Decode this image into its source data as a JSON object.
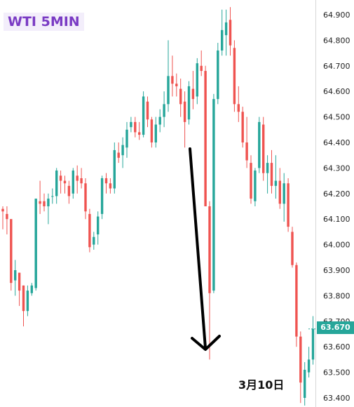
{
  "title": "WTI 5MIN",
  "date_label": "3月10日",
  "current_price": "63.670",
  "colors": {
    "up": "#26a69a",
    "down": "#ef5350",
    "title": "#7a3bc4",
    "axis_line": "#d7d7d7",
    "arrow": "#000000"
  },
  "chart_data": {
    "type": "candlestick",
    "title": "WTI 5MIN",
    "ylim": [
      63.34,
      64.95
    ],
    "y_ticks": [
      "64.900",
      "64.800",
      "64.700",
      "64.600",
      "64.500",
      "64.400",
      "64.300",
      "64.200",
      "64.100",
      "64.000",
      "63.900",
      "63.800",
      "63.700",
      "63.600",
      "63.500",
      "63.400"
    ],
    "current_price": 63.67,
    "annotation": "downward arrow",
    "candles": [
      [
        64.14,
        64.15,
        64.06,
        64.13
      ],
      [
        64.12,
        64.15,
        64.04,
        64.1
      ],
      [
        64.1,
        64.1,
        63.82,
        63.85
      ],
      [
        63.86,
        63.94,
        63.8,
        63.9
      ],
      [
        63.89,
        63.89,
        63.76,
        63.82
      ],
      [
        63.84,
        63.84,
        63.68,
        63.74
      ],
      [
        63.74,
        63.84,
        63.72,
        63.82
      ],
      [
        63.81,
        63.85,
        63.8,
        63.84
      ],
      [
        63.83,
        64.18,
        63.82,
        64.18
      ],
      [
        64.17,
        64.25,
        64.12,
        64.16
      ],
      [
        64.17,
        64.2,
        64.13,
        64.15
      ],
      [
        64.15,
        64.2,
        64.08,
        64.18
      ],
      [
        64.19,
        64.22,
        64.16,
        64.19
      ],
      [
        64.19,
        64.3,
        64.16,
        64.29
      ],
      [
        64.27,
        64.29,
        64.2,
        64.25
      ],
      [
        64.25,
        64.27,
        64.2,
        64.24
      ],
      [
        64.23,
        64.25,
        64.16,
        64.19
      ],
      [
        64.2,
        64.3,
        64.18,
        64.29
      ],
      [
        64.27,
        64.31,
        64.2,
        64.25
      ],
      [
        64.26,
        64.3,
        64.22,
        64.24
      ],
      [
        64.24,
        64.26,
        64.1,
        64.13
      ],
      [
        64.12,
        64.14,
        63.97,
        63.99
      ],
      [
        64.0,
        64.05,
        63.98,
        64.03
      ],
      [
        64.04,
        64.13,
        64.0,
        64.11
      ],
      [
        64.12,
        64.27,
        64.1,
        64.26
      ],
      [
        64.26,
        64.28,
        64.2,
        64.24
      ],
      [
        64.24,
        64.26,
        64.2,
        64.22
      ],
      [
        64.22,
        64.4,
        64.2,
        64.37
      ],
      [
        64.36,
        64.4,
        64.32,
        64.34
      ],
      [
        64.35,
        64.42,
        64.3,
        64.39
      ],
      [
        64.38,
        64.48,
        64.34,
        64.45
      ],
      [
        64.46,
        64.5,
        64.44,
        64.48
      ],
      [
        64.48,
        64.5,
        64.42,
        64.44
      ],
      [
        64.44,
        64.48,
        64.41,
        64.43
      ],
      [
        64.43,
        64.6,
        64.42,
        64.58
      ],
      [
        64.56,
        64.58,
        64.46,
        64.49
      ],
      [
        64.49,
        64.5,
        64.38,
        64.4
      ],
      [
        64.4,
        64.5,
        64.38,
        64.47
      ],
      [
        64.47,
        64.53,
        64.44,
        64.5
      ],
      [
        64.5,
        64.6,
        64.46,
        64.55
      ],
      [
        64.55,
        64.8,
        64.52,
        64.66
      ],
      [
        64.66,
        64.74,
        64.58,
        64.63
      ],
      [
        64.63,
        64.67,
        64.58,
        64.62
      ],
      [
        64.61,
        64.65,
        64.5,
        64.55
      ],
      [
        64.56,
        64.6,
        64.38,
        64.48
      ],
      [
        64.49,
        64.64,
        64.47,
        64.62
      ],
      [
        64.61,
        64.68,
        64.53,
        64.57
      ],
      [
        64.58,
        64.73,
        64.55,
        64.71
      ],
      [
        64.7,
        64.76,
        64.66,
        64.68
      ],
      [
        64.68,
        64.7,
        64.15,
        64.15
      ],
      [
        64.15,
        64.17,
        63.55,
        63.81
      ],
      [
        63.82,
        64.59,
        63.81,
        64.57
      ],
      [
        64.57,
        64.79,
        64.55,
        64.76
      ],
      [
        64.76,
        64.92,
        64.74,
        64.84
      ],
      [
        64.82,
        64.92,
        64.74,
        64.87
      ],
      [
        64.88,
        64.93,
        64.74,
        64.78
      ],
      [
        64.77,
        64.8,
        64.52,
        64.55
      ],
      [
        64.55,
        64.62,
        64.48,
        64.52
      ],
      [
        64.52,
        64.54,
        64.38,
        64.4
      ],
      [
        64.4,
        64.5,
        64.3,
        64.33
      ],
      [
        64.32,
        64.35,
        64.16,
        64.18
      ],
      [
        64.17,
        64.3,
        64.15,
        64.29
      ],
      [
        64.3,
        64.5,
        64.28,
        64.48
      ],
      [
        64.47,
        64.5,
        64.25,
        64.28
      ],
      [
        64.28,
        64.35,
        64.2,
        64.32
      ],
      [
        64.32,
        64.37,
        64.2,
        64.23
      ],
      [
        64.23,
        64.35,
        64.18,
        64.25
      ],
      [
        64.25,
        64.3,
        64.14,
        64.16
      ],
      [
        64.16,
        64.28,
        64.09,
        64.24
      ],
      [
        64.24,
        64.26,
        64.05,
        64.07
      ],
      [
        64.05,
        64.07,
        63.91,
        63.92
      ],
      [
        63.92,
        63.93,
        63.6,
        63.64
      ],
      [
        63.64,
        63.66,
        63.38,
        63.46
      ],
      [
        63.4,
        63.54,
        63.37,
        63.51
      ],
      [
        63.5,
        63.6,
        63.48,
        63.55
      ],
      [
        63.55,
        63.72,
        63.53,
        63.67
      ]
    ]
  }
}
